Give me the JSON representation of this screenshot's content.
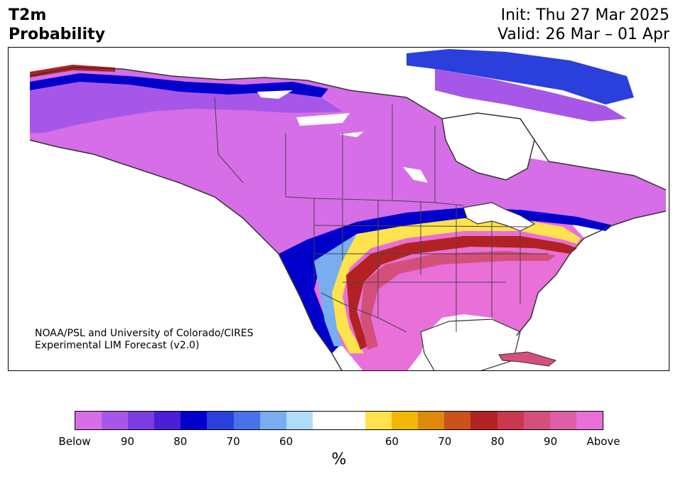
{
  "title": {
    "line1": "T2m",
    "line2": "Probability"
  },
  "init": {
    "line1": "Init: Thu 27 Mar 2025",
    "line2": "Valid: 26 Mar – 01 Apr"
  },
  "credit": {
    "line1": "NOAA/PSL and University of Colorado/CIRES",
    "line2": "Experimental LIM Forecast (v2.0)"
  },
  "colorbar": {
    "colors": [
      "#d66ee8",
      "#a757e8",
      "#7b3ddf",
      "#4a1fd6",
      "#0000cd",
      "#2a3fdc",
      "#4a72e8",
      "#77aef0",
      "#aedcf9",
      "#ffffff",
      "#ffffff",
      "#ffe34d",
      "#f2b705",
      "#dd8a0c",
      "#c8521a",
      "#b32222",
      "#c9384d",
      "#d4507a",
      "#de5fa8",
      "#e870d8"
    ],
    "tick_labels": [
      "Below",
      "90",
      "80",
      "70",
      "60",
      "60",
      "70",
      "80",
      "90",
      "Above"
    ],
    "unit": "%"
  },
  "map_colors": {
    "below_strong": "#d66ee8",
    "below_mid": "#a757e8",
    "blue_deep": "#0000cd",
    "blue_light": "#77aef0",
    "yellow": "#ffe34d",
    "red": "#b32222",
    "above_strong": "#e870d8"
  }
}
